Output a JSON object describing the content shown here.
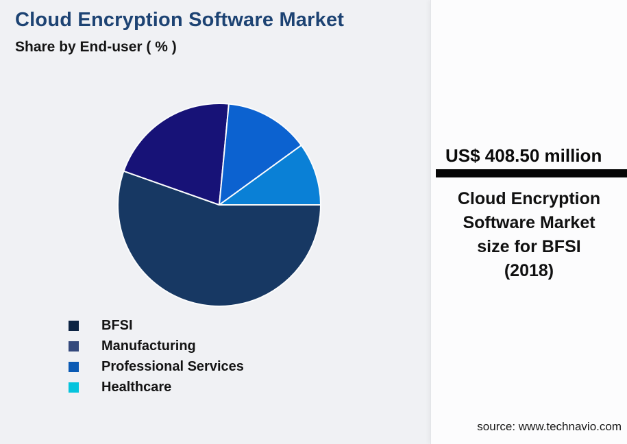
{
  "chart_data": {
    "type": "pie",
    "title": "Cloud Encryption Software Market",
    "subtitle": "Share by End-user ( % )",
    "categories": [
      "BFSI",
      "Manufacturing",
      "Professional Services",
      "Healthcare"
    ],
    "values": [
      55.4,
      21.1,
      13.5,
      10.0
    ],
    "unit": "%",
    "start_angle_deg": 0,
    "direction": "clockwise",
    "slice_colors": [
      "#173863",
      "#171277",
      "#0c62d0",
      "#0a80d6"
    ],
    "legend_swatch_colors": [
      "#0d2443",
      "#34497c",
      "#0b5ab4",
      "#06c4dd"
    ],
    "legend_position": "bottom-left",
    "grid": false
  },
  "callout": {
    "value": "US$ 408.50 million",
    "description_lines": [
      "Cloud Encryption",
      "Software Market",
      "size for BFSI",
      "(2018)"
    ],
    "source": "source: www.technavio.com"
  },
  "colors": {
    "page_background": "#f0f1f4",
    "panel_background": "#fcfcfd",
    "title_text": "#1d4373",
    "body_text": "#131313",
    "divider_bar": "#060606"
  }
}
